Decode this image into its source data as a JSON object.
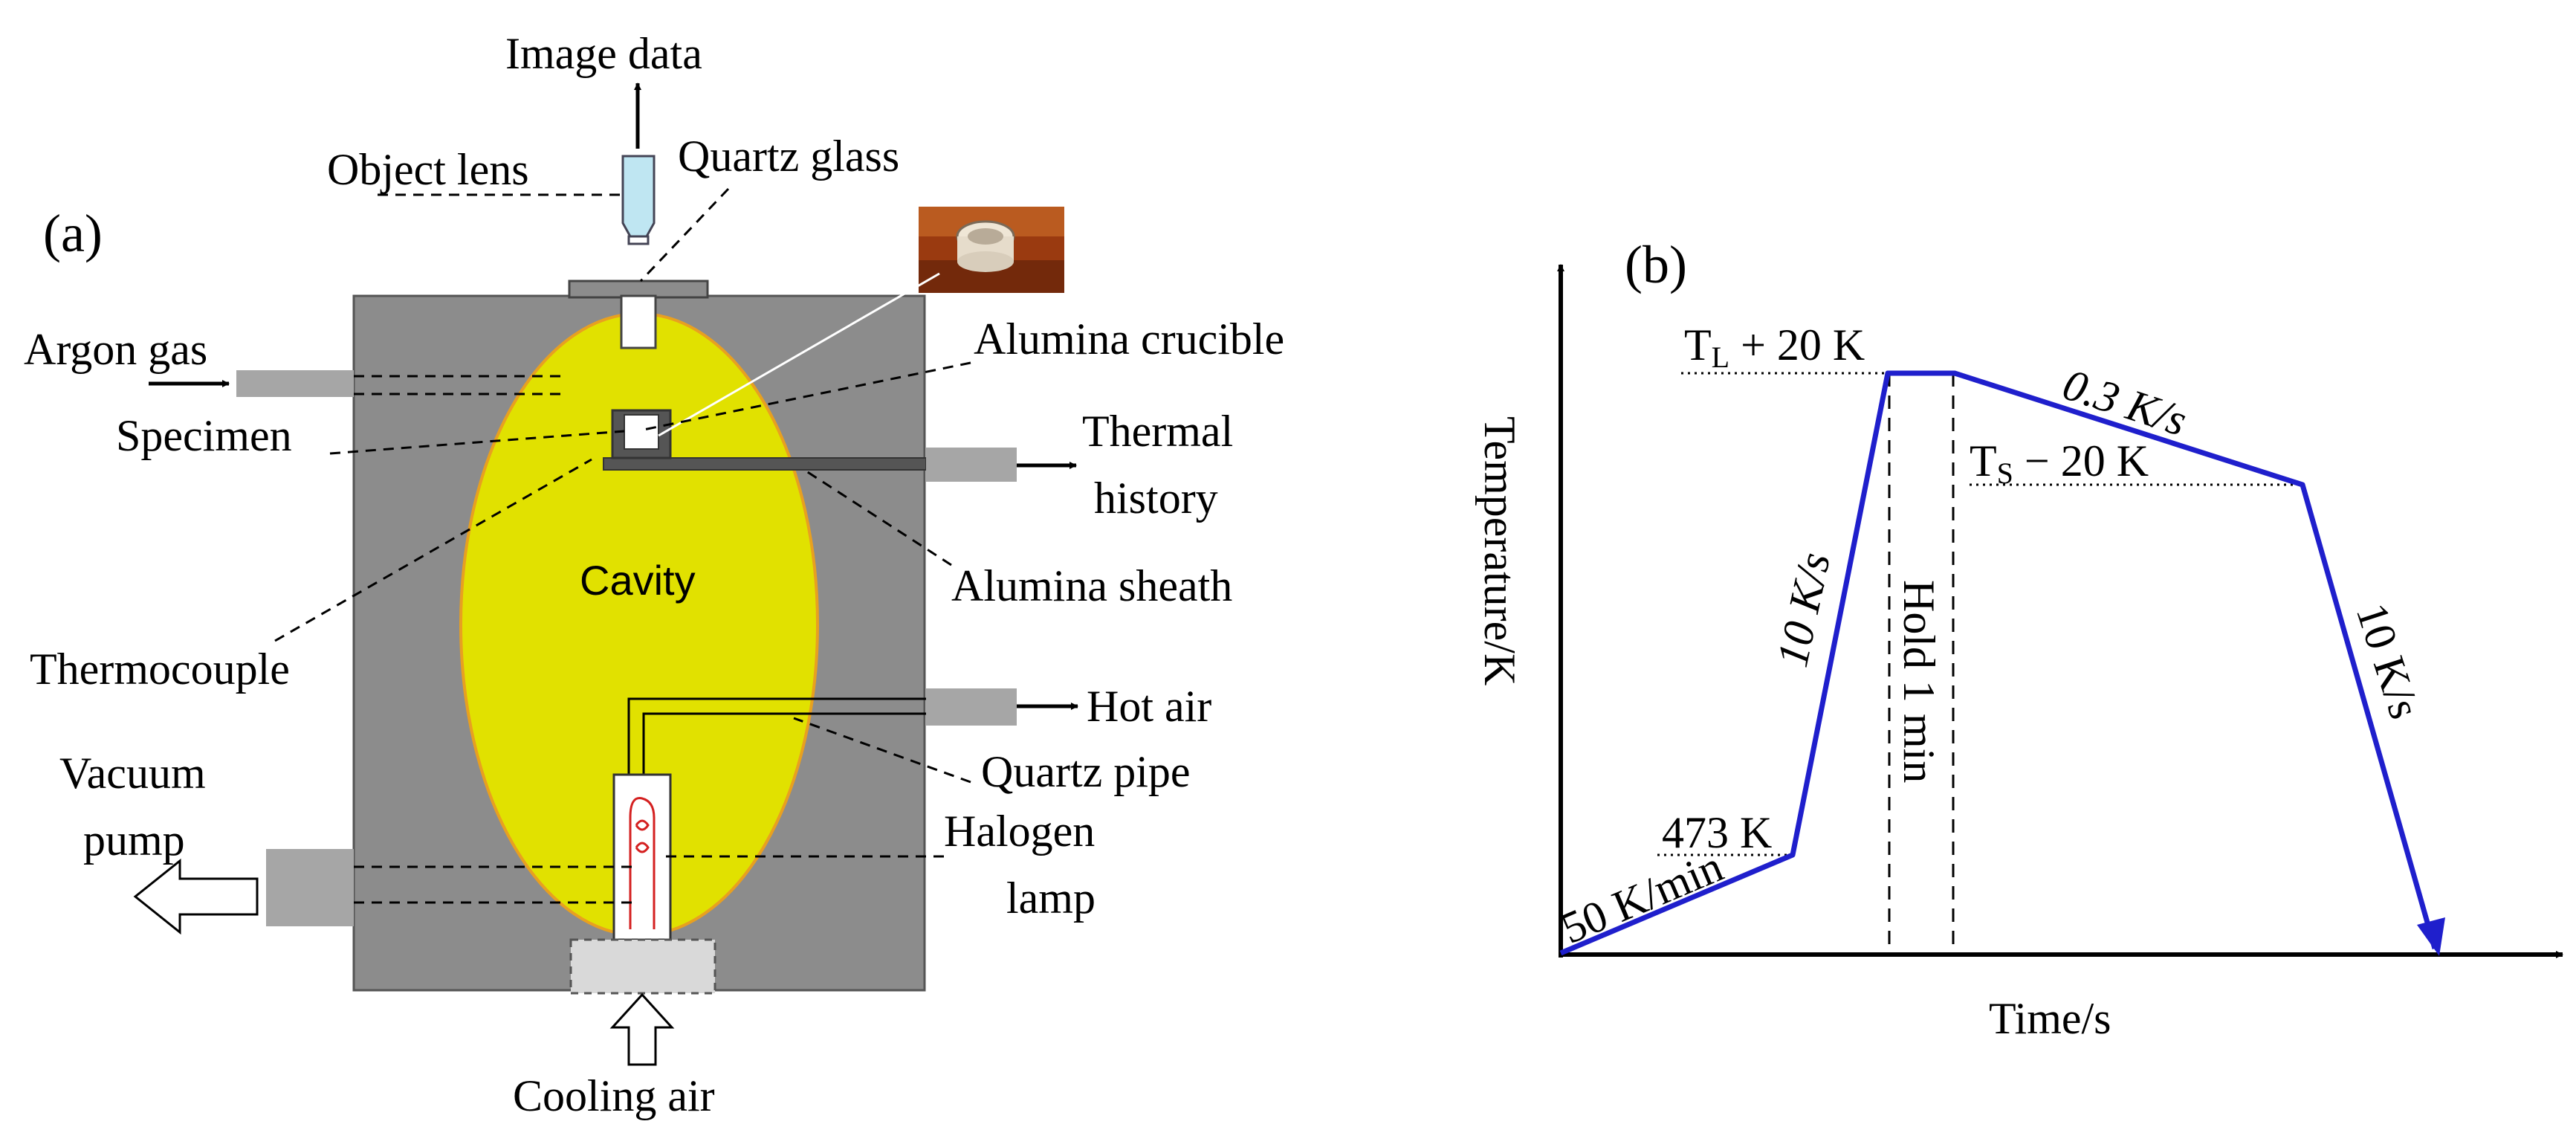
{
  "panel_a": {
    "tag": "(a)",
    "labels": {
      "image_data": "Image data",
      "object_lens": "Object lens",
      "quartz_glass": "Quartz glass",
      "argon_gas": "Argon gas",
      "alumina_crucible": "Alumina crucible",
      "specimen": "Specimen",
      "thermal": "Thermal",
      "history": "history",
      "cavity": "Cavity",
      "alumina_sheath": "Alumina sheath",
      "thermocouple": "Thermocouple",
      "hot_air": "Hot air",
      "quartz_pipe": "Quartz pipe",
      "vacuum": "Vacuum",
      "pump": "pump",
      "halogen": "Halogen",
      "lamp": "lamp",
      "cooling_air": "Cooling air"
    },
    "colors": {
      "chamber": "#8c8c8c",
      "cavity_fill": "#e1e100",
      "cavity_edge": "#e8a020",
      "port": "#a6a6a6",
      "lens": "#bfe6f2",
      "filament": "#d42020"
    }
  },
  "panel_b": {
    "tag": "(b)",
    "ylabel": "Temperature/K",
    "xlabel": "Time/s",
    "annotations": {
      "tl_main": "T",
      "tl_sub": "L",
      "tl_rest": " + 20 K",
      "ts_main": "T",
      "ts_sub": "S",
      "ts_rest": " −  20 K",
      "k473": "473 K",
      "rate1": "50 K/min",
      "rate2": "10 K/s",
      "hold": "Hold 1 min",
      "rate3": "0.3 K/s",
      "rate4": "10 K/s"
    },
    "line_color": "#1f1fcc"
  },
  "chart_data": {
    "type": "line",
    "title": "",
    "xlabel": "Time/s",
    "ylabel": "Temperature/K",
    "segments": [
      {
        "from": "start",
        "to": "473 K",
        "rate": "50 K/min"
      },
      {
        "from": "473 K",
        "to": "TL + 20 K",
        "rate": "10 K/s"
      },
      {
        "from": "TL + 20 K",
        "to": "TL + 20 K",
        "rate": "Hold 1 min"
      },
      {
        "from": "TL + 20 K",
        "to": "TS − 20 K",
        "rate": "0.3 K/s"
      },
      {
        "from": "TS − 20 K",
        "to": "end",
        "rate": "10 K/s"
      }
    ],
    "grid": false
  }
}
